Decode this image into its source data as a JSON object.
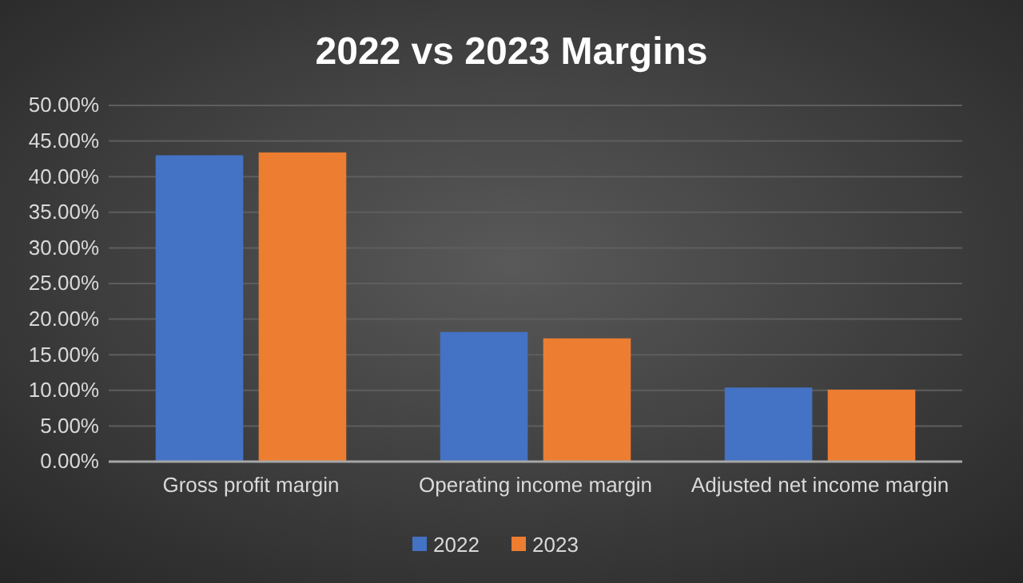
{
  "chart_data": {
    "type": "bar",
    "title": "2022 vs 2023 Margins",
    "categories": [
      "Gross profit margin",
      "Operating income margin",
      "Adjusted net income margin"
    ],
    "series": [
      {
        "name": "2022",
        "color": "#4472c4",
        "values": [
          43.0,
          18.2,
          10.4
        ]
      },
      {
        "name": "2023",
        "color": "#ed7d31",
        "values": [
          43.4,
          17.3,
          10.1
        ]
      }
    ],
    "ylim": [
      0,
      50
    ],
    "yticks": [
      {
        "value": 0,
        "label": "0.00%"
      },
      {
        "value": 5,
        "label": "5.00%"
      },
      {
        "value": 10,
        "label": "10.00%"
      },
      {
        "value": 15,
        "label": "15.00%"
      },
      {
        "value": 20,
        "label": "20.00%"
      },
      {
        "value": 25,
        "label": "25.00%"
      },
      {
        "value": 30,
        "label": "30.00%"
      },
      {
        "value": 35,
        "label": "35.00%"
      },
      {
        "value": 40,
        "label": "40.00%"
      },
      {
        "value": 45,
        "label": "45.00%"
      },
      {
        "value": 50,
        "label": "50.00%"
      }
    ],
    "grid": "y",
    "legend": "bottom"
  }
}
